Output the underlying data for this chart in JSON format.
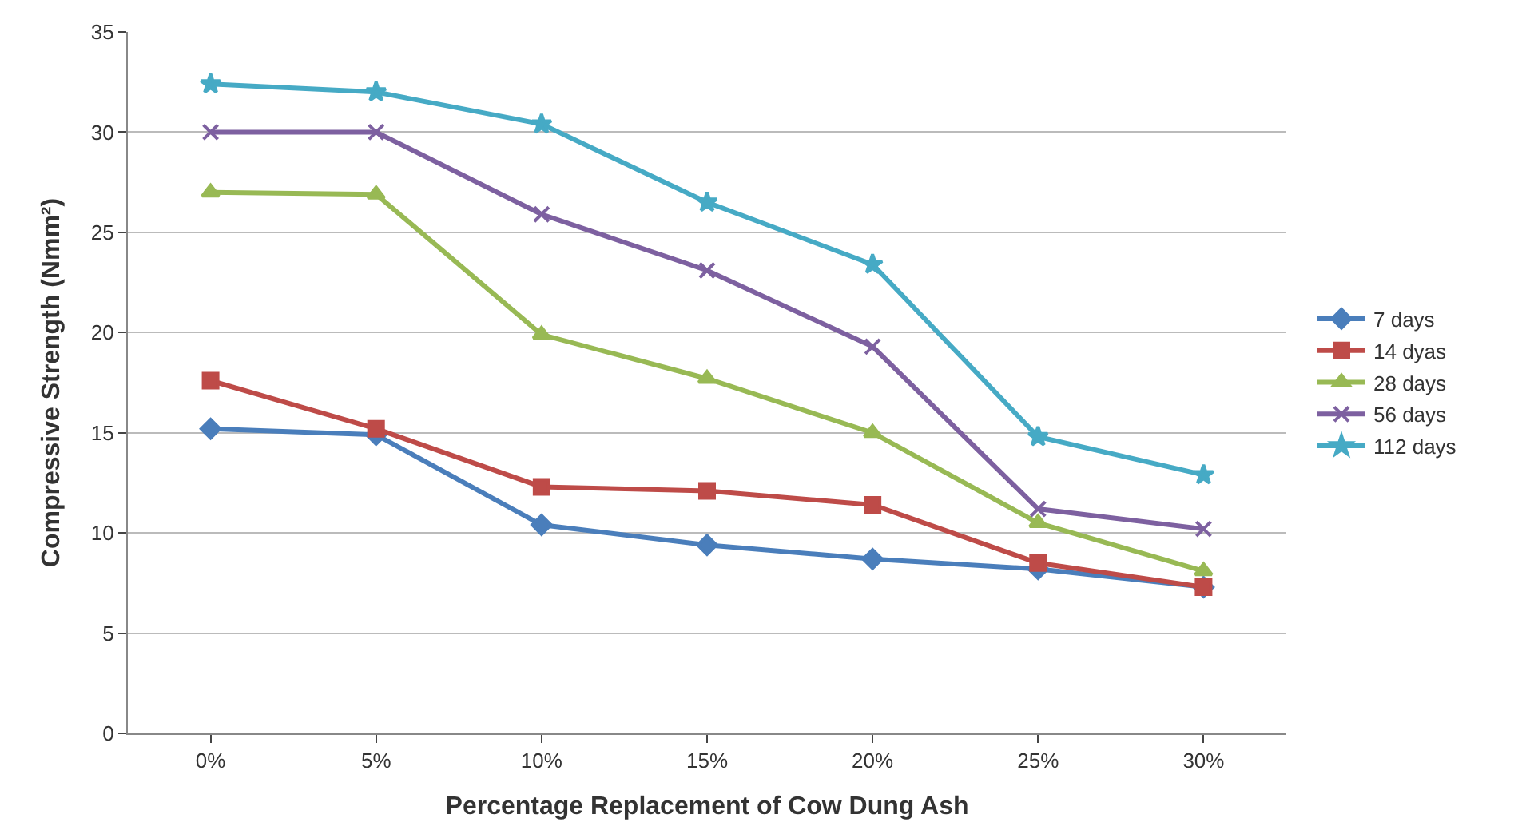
{
  "chart_data": {
    "type": "line",
    "xlabel": "Percentage Replacement of Cow Dung Ash",
    "ylabel": "Compressive Strength (Nmm²)",
    "categories": [
      "0%",
      "5%",
      "10%",
      "15%",
      "20%",
      "25%",
      "30%"
    ],
    "ylim": [
      0,
      35
    ],
    "yticks": [
      0,
      5,
      10,
      15,
      20,
      25,
      30,
      35
    ],
    "grid": "y",
    "legend": "right",
    "line_style": "solid",
    "series": [
      {
        "name": "7 days",
        "color": "#4a7ebb",
        "marker": "diamond",
        "values": [
          15.2,
          14.9,
          10.4,
          9.4,
          8.7,
          8.2,
          7.3
        ]
      },
      {
        "name": "14 dyas",
        "color": "#be4b48",
        "marker": "square",
        "values": [
          17.6,
          15.2,
          12.3,
          12.1,
          11.4,
          8.5,
          7.3
        ]
      },
      {
        "name": "28 days",
        "color": "#98b954",
        "marker": "triangle",
        "values": [
          27.0,
          26.9,
          19.9,
          17.7,
          15.0,
          10.5,
          8.1
        ]
      },
      {
        "name": "56 days",
        "color": "#7d60a0",
        "marker": "cross",
        "values": [
          30.0,
          30.0,
          25.9,
          23.1,
          19.3,
          11.2,
          10.2
        ]
      },
      {
        "name": "112 days",
        "color": "#46aac5",
        "marker": "star",
        "values": [
          32.4,
          32.0,
          30.4,
          26.5,
          23.4,
          14.8,
          12.9
        ]
      }
    ]
  }
}
